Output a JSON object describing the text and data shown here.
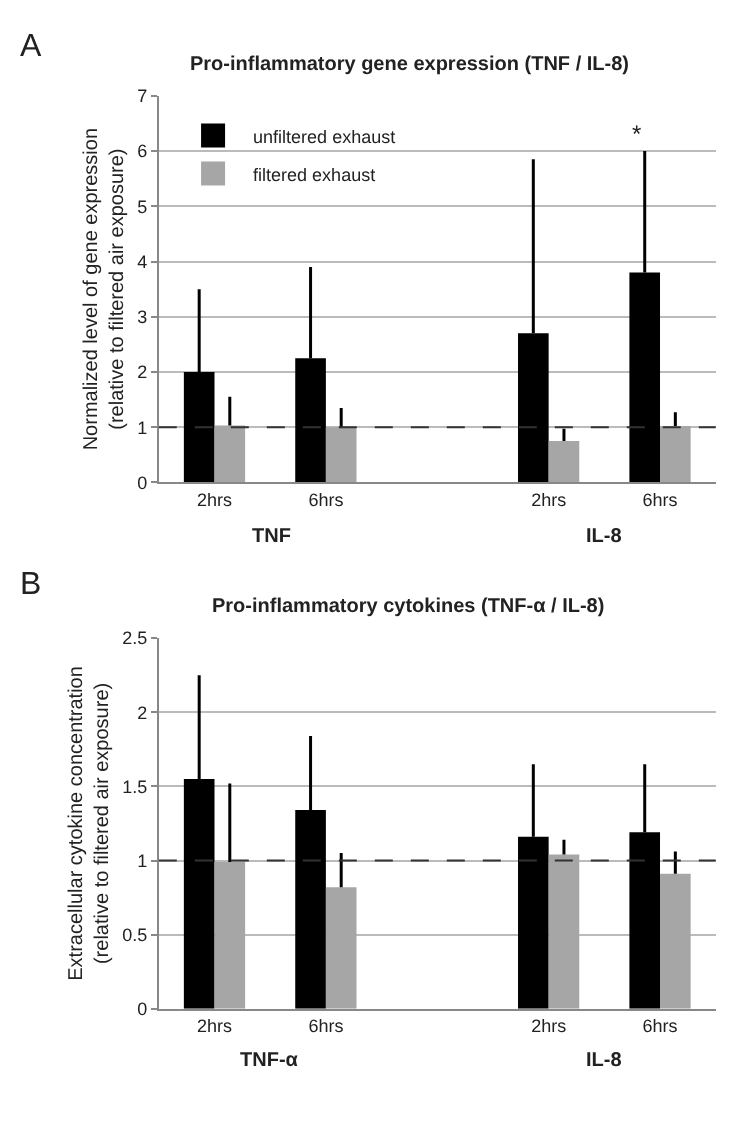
{
  "chart_data": [
    {
      "type": "bar",
      "title": "Pro-inflammatory gene expression (TNF / IL-8)",
      "ylabel": "Normalized level of gene expression\n(relative to filtered air exposure)",
      "categories": [
        "2hrs",
        "6hrs",
        null,
        "2hrs",
        "6hrs"
      ],
      "series": [
        {
          "name": "unfiltered exhaust",
          "color": "#000000",
          "values": [
            2.0,
            2.25,
            null,
            2.7,
            3.8
          ],
          "errors": [
            [
              2.0,
              3.5
            ],
            [
              2.25,
              3.9
            ],
            null,
            [
              2.7,
              5.85
            ],
            [
              3.8,
              6.0
            ]
          ]
        },
        {
          "name": "filtered exhaust",
          "color": "#a6a6a6",
          "values": [
            1.03,
            1.0,
            null,
            0.75,
            1.02
          ],
          "errors": [
            [
              1.03,
              1.55
            ],
            [
              1.0,
              1.35
            ],
            null,
            [
              0.75,
              0.97
            ],
            [
              1.02,
              1.27
            ]
          ]
        }
      ],
      "ylim": [
        0,
        7
      ],
      "yticks": [
        0,
        1,
        2,
        3,
        4,
        5,
        6,
        7
      ],
      "grid": "y",
      "legend": "top left",
      "ref_lines": [
        {
          "axis": "y",
          "value": 1,
          "line_style": "dashed",
          "color": "#333333"
        }
      ],
      "annotations": [
        "A",
        "TNF",
        "IL-8",
        "*"
      ]
    },
    {
      "type": "bar",
      "title": "Pro-inflammatory cytokines (TNF-α / IL-8)",
      "ylabel": "Extracellular cytokine concentration\n(relative to filtered air exposure)",
      "categories": [
        "2hrs",
        "6hrs",
        null,
        "2hrs",
        "6hrs"
      ],
      "series": [
        {
          "color": "#000000",
          "values": [
            1.55,
            1.34,
            null,
            1.16,
            1.19
          ],
          "errors": [
            [
              1.55,
              2.25
            ],
            [
              1.34,
              1.84
            ],
            null,
            [
              1.16,
              1.65
            ],
            [
              1.19,
              1.65
            ]
          ]
        },
        {
          "color": "#a6a6a6",
          "values": [
            0.99,
            0.82,
            null,
            1.04,
            0.91
          ],
          "errors": [
            [
              0.99,
              1.52
            ],
            [
              0.82,
              1.05
            ],
            null,
            [
              1.04,
              1.14
            ],
            [
              0.91,
              1.06
            ]
          ]
        }
      ],
      "ylim": [
        0,
        2.5
      ],
      "yticks": [
        0,
        0.5,
        1,
        1.5,
        2,
        2.5
      ],
      "grid": "y",
      "ref_lines": [
        {
          "axis": "y",
          "value": 1,
          "line_style": "dashed",
          "color": "#333333"
        }
      ],
      "annotations": [
        "B",
        "TNF-α",
        "IL-8"
      ]
    }
  ]
}
